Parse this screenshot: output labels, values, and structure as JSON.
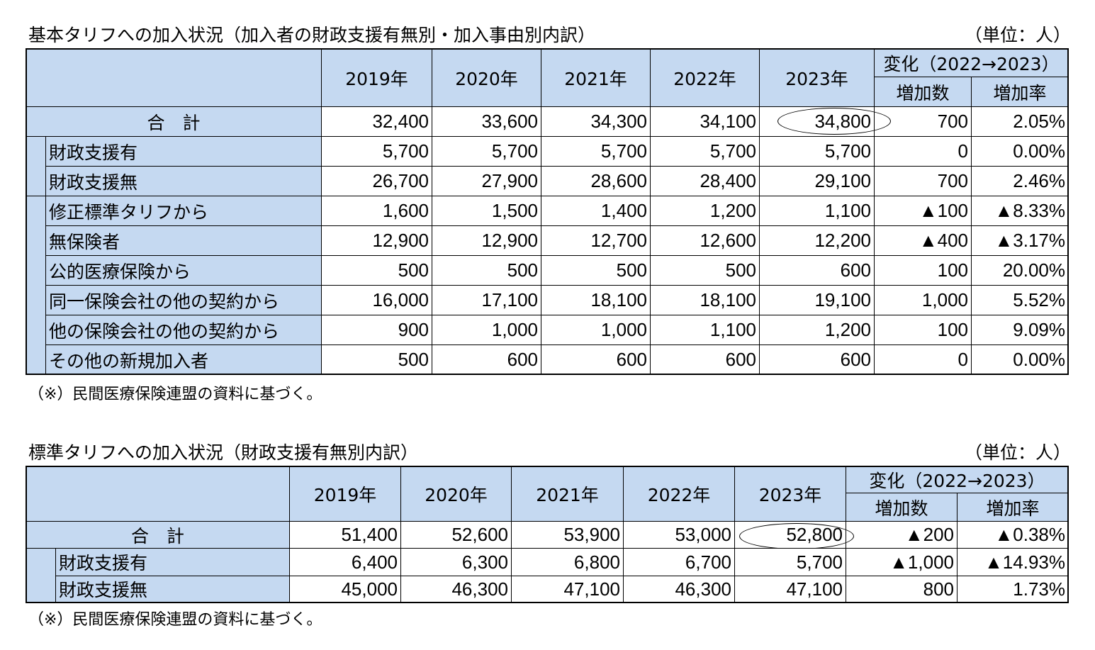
{
  "tables": [
    {
      "title": "基本タリフへの加入状況（加入者の財政支援有無別・加入事由別内訳）",
      "unit": "（単位：人）",
      "header": {
        "years": [
          "2019年",
          "2020年",
          "2021年",
          "2022年",
          "2023年"
        ],
        "change": "変化（2022→2023）",
        "change_cols": [
          "増加数",
          "増加率"
        ]
      },
      "total": {
        "label": "合　計",
        "values": [
          "32,400",
          "33,600",
          "34,300",
          "34,100",
          "34,800",
          "700",
          "2.05%"
        ]
      },
      "groups": [
        [
          {
            "label": "財政支援有",
            "values": [
              "5,700",
              "5,700",
              "5,700",
              "5,700",
              "5,700",
              "0",
              "0.00%"
            ]
          },
          {
            "label": "財政支援無",
            "values": [
              "26,700",
              "27,900",
              "28,600",
              "28,400",
              "29,100",
              "700",
              "2.46%"
            ]
          }
        ],
        [
          {
            "label": "修正標準タリフから",
            "values": [
              "1,600",
              "1,500",
              "1,400",
              "1,200",
              "1,100",
              "▲100",
              "▲8.33%"
            ]
          },
          {
            "label": "無保険者",
            "values": [
              "12,900",
              "12,900",
              "12,700",
              "12,600",
              "12,200",
              "▲400",
              "▲3.17%"
            ]
          },
          {
            "label": "公的医療保険から",
            "values": [
              "500",
              "500",
              "500",
              "500",
              "600",
              "100",
              "20.00%"
            ]
          },
          {
            "label": "同一保険会社の他の契約から",
            "values": [
              "16,000",
              "17,100",
              "18,100",
              "18,100",
              "19,100",
              "1,000",
              "5.52%"
            ]
          },
          {
            "label": "他の保険会社の他の契約から",
            "values": [
              "900",
              "1,000",
              "1,000",
              "1,100",
              "1,200",
              "100",
              "9.09%"
            ]
          },
          {
            "label": "その他の新規加入者",
            "values": [
              "500",
              "600",
              "600",
              "600",
              "600",
              "0",
              "0.00%"
            ]
          }
        ]
      ],
      "note": "（※）民間医療保険連盟の資料に基づく。"
    },
    {
      "title": "標準タリフへの加入状況（財政支援有無別内訳）",
      "unit": "（単位：人）",
      "header": {
        "years": [
          "2019年",
          "2020年",
          "2021年",
          "2022年",
          "2023年"
        ],
        "change": "変化（2022→2023）",
        "change_cols": [
          "増加数",
          "増加率"
        ]
      },
      "total": {
        "label": "合　計",
        "values": [
          "51,400",
          "52,600",
          "53,900",
          "53,000",
          "52,800",
          "▲200",
          "▲0.38%"
        ]
      },
      "groups": [
        [
          {
            "label": "財政支援有",
            "values": [
              "6,400",
              "6,300",
              "6,800",
              "6,700",
              "5,700",
              "▲1,000",
              "▲14.93%"
            ]
          },
          {
            "label": "財政支援無",
            "values": [
              "45,000",
              "46,300",
              "47,100",
              "46,300",
              "47,100",
              "800",
              "1.73%"
            ]
          }
        ]
      ],
      "note": "（※）民間医療保険連盟の資料に基づく。"
    }
  ]
}
